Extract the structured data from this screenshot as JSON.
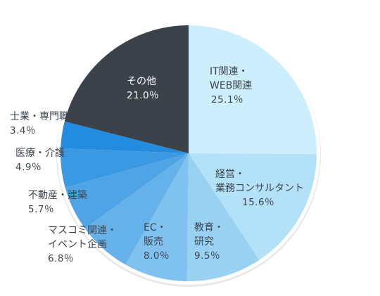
{
  "chart_data": {
    "type": "pie",
    "title": "",
    "unit": "%",
    "start": "top",
    "direction": "clockwise",
    "slices": [
      {
        "label_lines": [
          "IT関連・",
          "WEB関連"
        ],
        "value": 25.1,
        "display": "25.1％",
        "color": "#cdeefc",
        "text_color": "#3d4650"
      },
      {
        "label_lines": [
          "経営・",
          "業務コンサルタント"
        ],
        "value": 15.6,
        "display": "15.6％",
        "color": "#b3e1f8",
        "text_color": "#3d4650"
      },
      {
        "label_lines": [
          "教育・",
          "研究"
        ],
        "value": 9.5,
        "display": "9.5％",
        "color": "#99d1f3",
        "text_color": "#3d4650"
      },
      {
        "label_lines": [
          "EC・",
          "販売"
        ],
        "value": 8.0,
        "display": "8.0％",
        "color": "#7fc1ef",
        "text_color": "#3d4650"
      },
      {
        "label_lines": [
          "マスコミ関連・",
          "イベント企画"
        ],
        "value": 6.8,
        "display": "6.8％",
        "color": "#65b1ea",
        "text_color": "#3d4650"
      },
      {
        "label_lines": [
          "不動産・建築"
        ],
        "value": 5.7,
        "display": "5.7％",
        "color": "#4fa4e6",
        "text_color": "#3d4650"
      },
      {
        "label_lines": [
          "医療・介護"
        ],
        "value": 4.9,
        "display": "4.9％",
        "color": "#3b98e3",
        "text_color": "#3d4650"
      },
      {
        "label_lines": [
          "士業・専門職"
        ],
        "value": 3.4,
        "display": "3.4％",
        "color": "#238cdf",
        "text_color": "#3d4650"
      },
      {
        "label_lines": [
          "その他"
        ],
        "value": 21.0,
        "display": "21.0％",
        "color": "#3b4249",
        "text_color": "#ffffff"
      }
    ]
  }
}
